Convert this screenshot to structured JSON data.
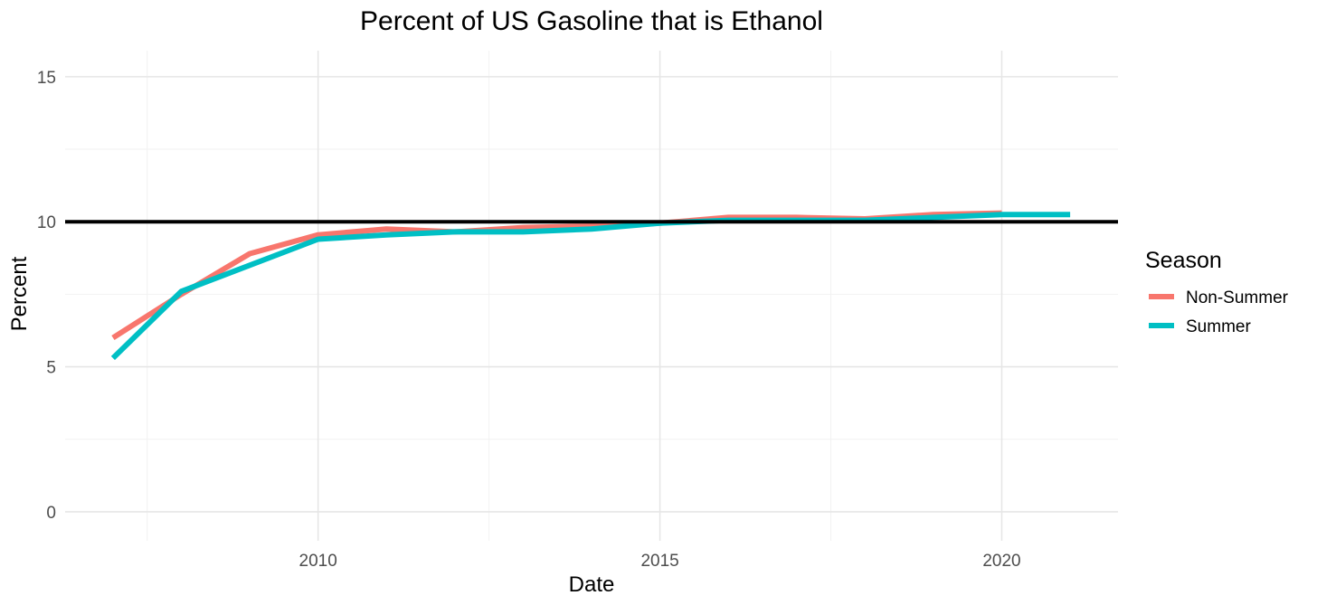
{
  "chart_data": {
    "type": "line",
    "title": "Percent of US Gasoline that is Ethanol",
    "xlabel": "Date",
    "ylabel": "Percent",
    "xlim": [
      2006.3,
      2021.7
    ],
    "ylim": [
      -1.0,
      15.9
    ],
    "x_ticks": [
      2010,
      2015,
      2020
    ],
    "x_minor": [
      2007.5,
      2012.5,
      2017.5
    ],
    "y_ticks": [
      0,
      5,
      10,
      15
    ],
    "y_minor": [
      2.5,
      7.5,
      12.5
    ],
    "x_tick_labels": [
      "2010",
      "2015",
      "2020"
    ],
    "y_tick_labels": [
      "0",
      "5",
      "10",
      "15"
    ],
    "reference_line": 10,
    "grid": true,
    "legend": {
      "title": "Season",
      "position": "right"
    },
    "series": [
      {
        "name": "Non-Summer",
        "color": "#F8766D",
        "x": [
          2007,
          2008,
          2009,
          2010,
          2011,
          2012,
          2013,
          2014,
          2015,
          2016,
          2017,
          2018,
          2019,
          2020
        ],
        "y": [
          6.0,
          7.5,
          8.9,
          9.55,
          9.75,
          9.65,
          9.8,
          9.85,
          9.95,
          10.15,
          10.15,
          10.1,
          10.25,
          10.3
        ]
      },
      {
        "name": "Summer",
        "color": "#00BFC4",
        "x": [
          2007,
          2008,
          2009,
          2010,
          2011,
          2012,
          2013,
          2014,
          2015,
          2016,
          2017,
          2018,
          2019,
          2020,
          2021
        ],
        "y": [
          5.3,
          7.6,
          8.5,
          9.4,
          9.55,
          9.65,
          9.65,
          9.75,
          9.95,
          10.05,
          10.05,
          10.05,
          10.15,
          10.25,
          10.25
        ]
      }
    ]
  }
}
